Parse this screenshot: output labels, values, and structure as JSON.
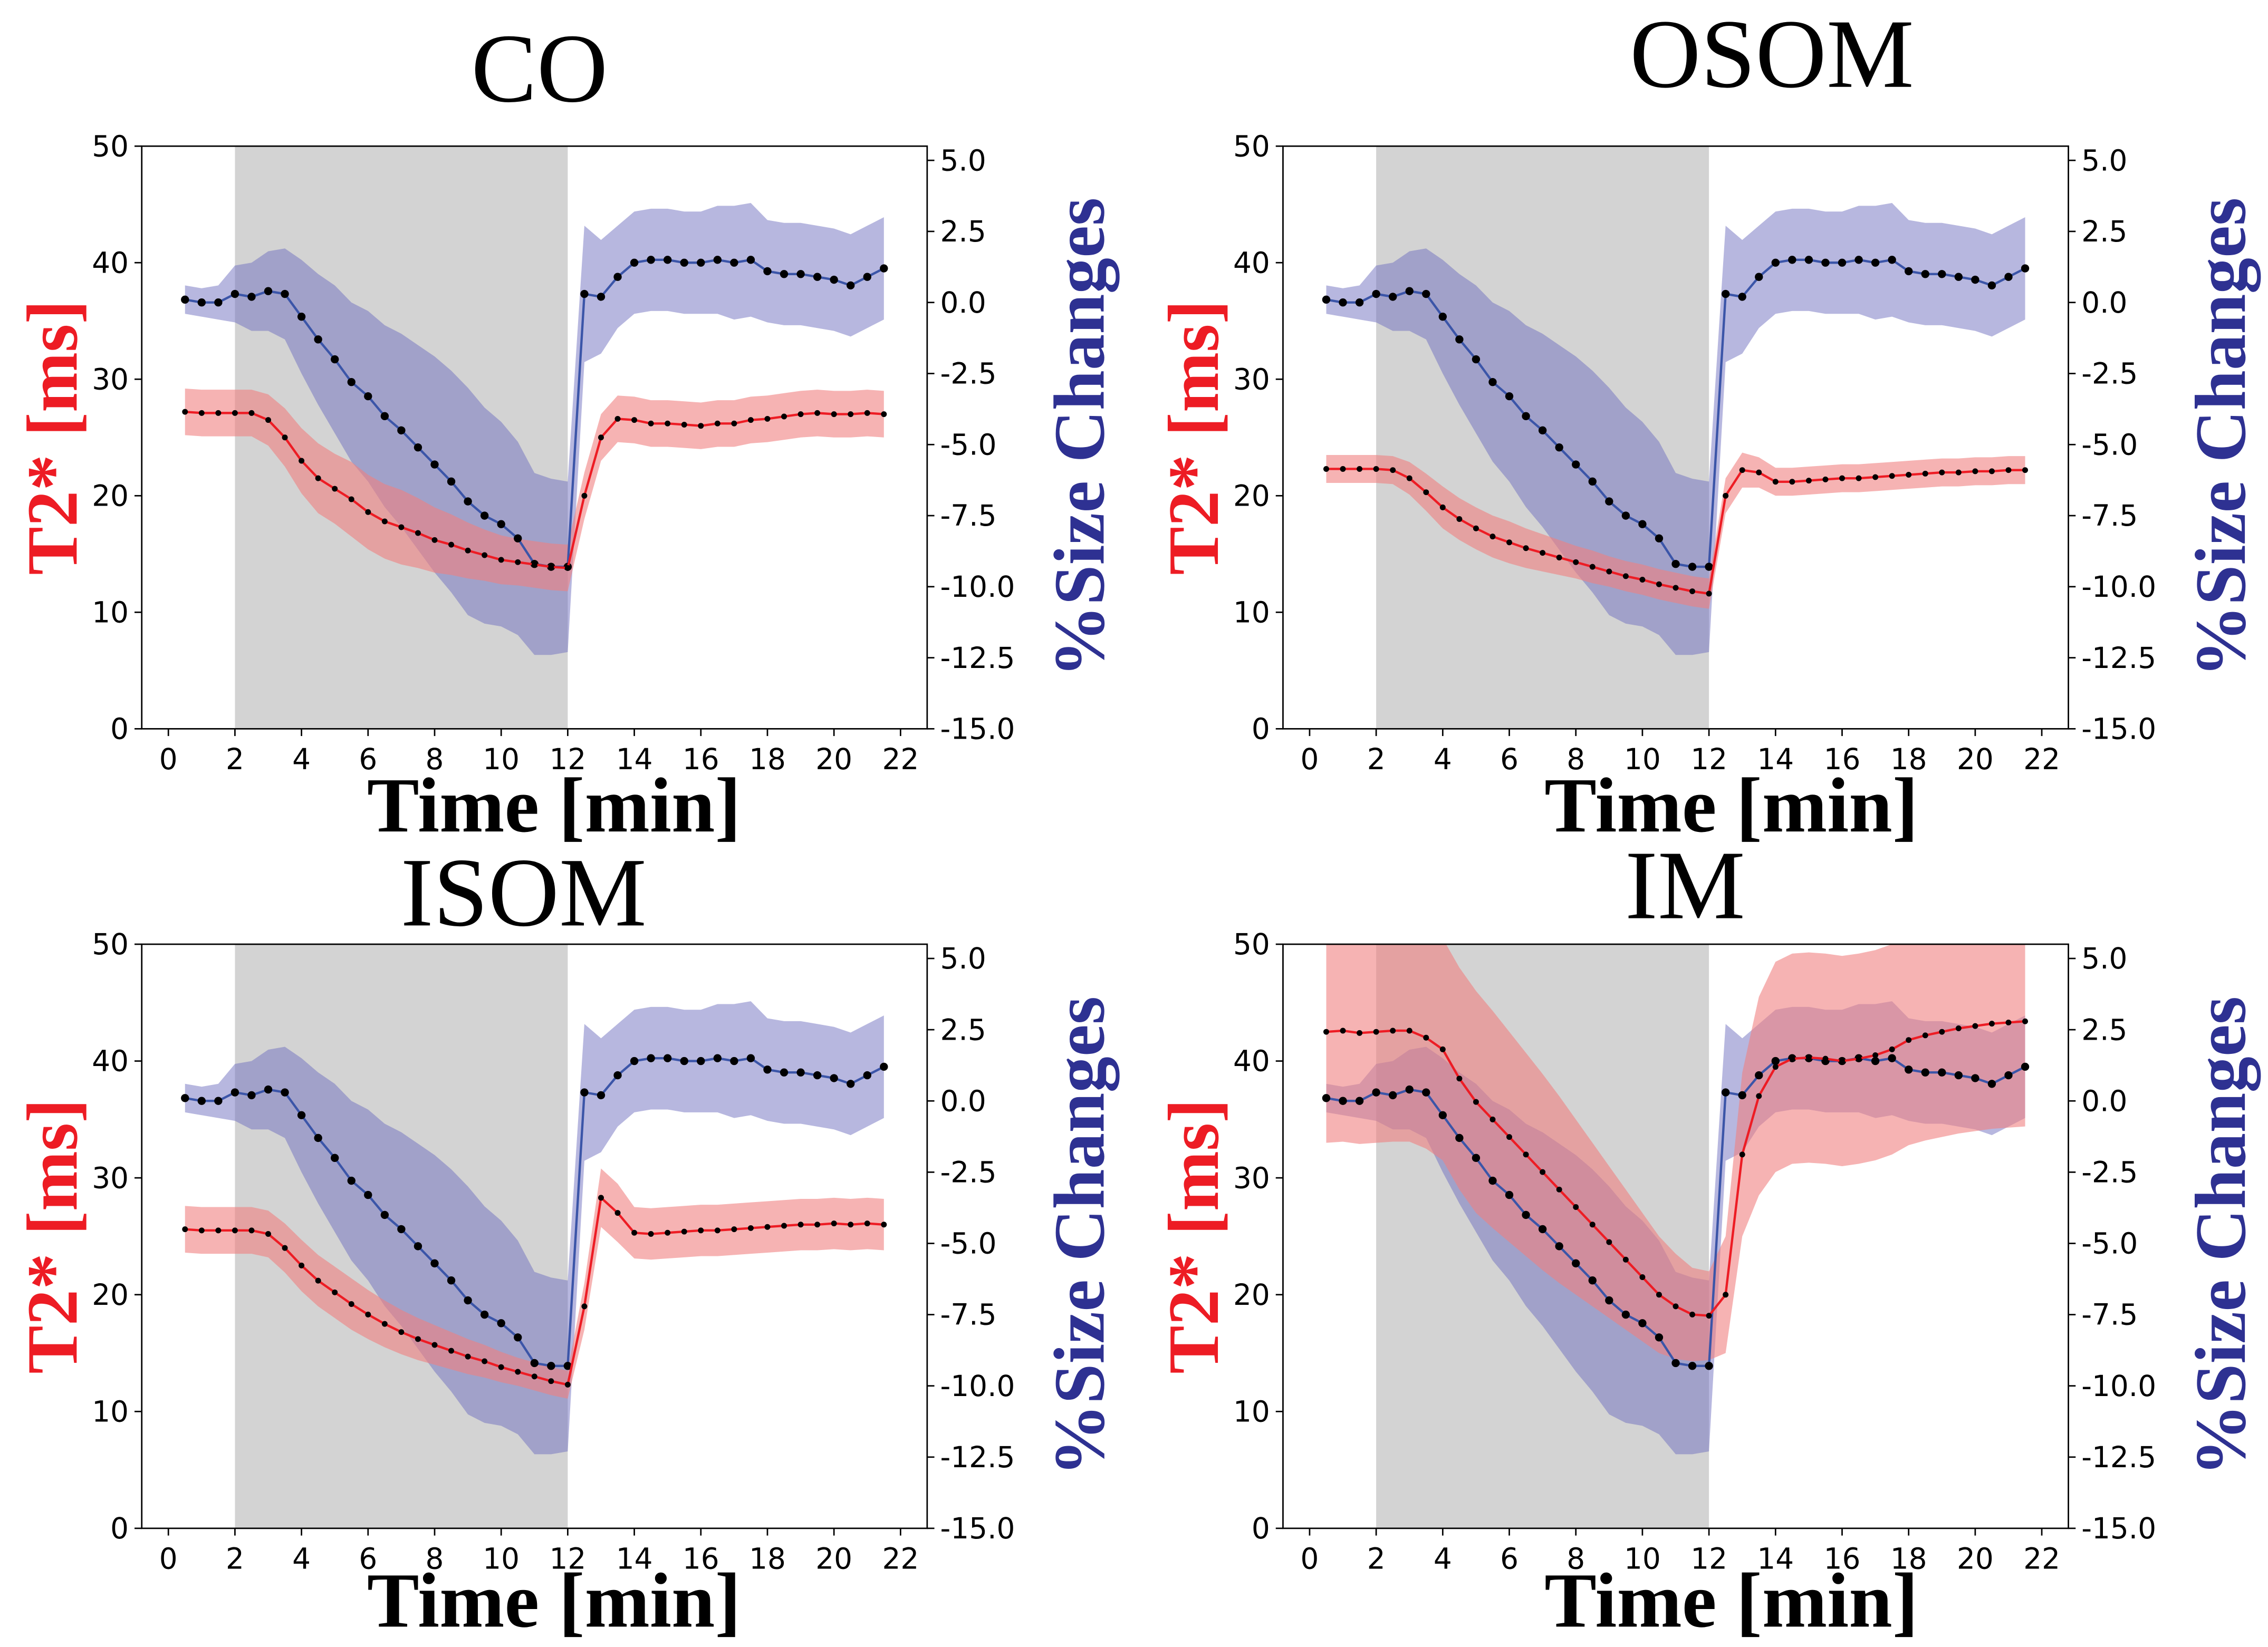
{
  "colors": {
    "t2": "#ed1c24",
    "t2_band": "#f08080",
    "size": "#2e3192",
    "size_line": "#3b55a8",
    "size_band": "#6f6fc0",
    "stim": "#d3d3d3",
    "dots": "#000000"
  },
  "chart_data": [
    {
      "type": "line",
      "title": "CO",
      "xlabel": "Time [min]",
      "ylabel_left": "T2* [ms]",
      "ylabel_right": "%Size Changes",
      "xlim": [
        -0.8,
        22.8
      ],
      "ylim_left": [
        0,
        50
      ],
      "ylim_right": [
        -15,
        5.5
      ],
      "xticks": [
        "0",
        "2",
        "4",
        "6",
        "8",
        "10",
        "12",
        "14",
        "16",
        "18",
        "20",
        "22"
      ],
      "yticks_left": [
        "0",
        "10",
        "20",
        "30",
        "40",
        "50"
      ],
      "yticks_right": [
        "-15.0",
        "-12.5",
        "-10.0",
        "-7.5",
        "-5.0",
        "-2.5",
        "0.0",
        "2.5",
        "5.0"
      ],
      "shaded_interval": [
        2,
        12
      ],
      "grid": false,
      "x": [
        0.5,
        1,
        1.5,
        2,
        2.5,
        3,
        3.5,
        4,
        4.5,
        5,
        5.5,
        6,
        6.5,
        7,
        7.5,
        8,
        8.5,
        9,
        9.5,
        10,
        10.5,
        11,
        11.5,
        12,
        12.5,
        13,
        13.5,
        14,
        14.5,
        15,
        15.5,
        16,
        16.5,
        17,
        17.5,
        18,
        18.5,
        19,
        19.5,
        20,
        20.5,
        21,
        21.5
      ],
      "series": [
        {
          "axis": "left",
          "mean": [
            27.2,
            27.1,
            27.1,
            27.1,
            27.1,
            26.5,
            25,
            23,
            21.5,
            20.6,
            19.7,
            18.6,
            17.8,
            17.3,
            16.8,
            16.2,
            15.8,
            15.3,
            14.9,
            14.5,
            14.3,
            14.1,
            13.9,
            13.8,
            20,
            25,
            26.6,
            26.5,
            26.2,
            26.2,
            26.1,
            26,
            26.2,
            26.2,
            26.5,
            26.6,
            26.8,
            27,
            27.1,
            27,
            27,
            27.1,
            27
          ],
          "band": [
            2,
            2,
            2,
            2,
            2,
            2.2,
            2.5,
            2.8,
            3,
            3,
            3.2,
            3.2,
            3.2,
            3.2,
            3,
            2.8,
            2.6,
            2.4,
            2.2,
            2.1,
            2,
            2,
            2,
            2,
            2,
            2,
            2,
            2,
            2,
            2,
            2,
            2,
            2,
            2,
            2,
            2,
            2,
            2,
            2,
            2,
            2,
            2,
            2
          ]
        },
        {
          "axis": "right",
          "mean": [
            0.1,
            0,
            0,
            0.3,
            0.2,
            0.4,
            0.3,
            -0.5,
            -1.3,
            -2,
            -2.8,
            -3.3,
            -4,
            -4.5,
            -5.1,
            -5.7,
            -6.3,
            -7,
            -7.5,
            -7.8,
            -8.3,
            -9.2,
            -9.3,
            -9.3,
            0.3,
            0.2,
            0.9,
            1.4,
            1.5,
            1.5,
            1.4,
            1.4,
            1.5,
            1.4,
            1.5,
            1.1,
            1,
            1,
            0.9,
            0.8,
            0.6,
            0.9,
            1.2
          ],
          "band": [
            0.5,
            0.5,
            0.6,
            1,
            1.2,
            1.4,
            1.6,
            2,
            2.3,
            2.6,
            2.8,
            3,
            3.2,
            3.4,
            3.6,
            3.8,
            3.9,
            4,
            3.8,
            3.6,
            3.4,
            3.2,
            3.1,
            3,
            2.4,
            2,
            1.8,
            1.8,
            1.8,
            1.8,
            1.8,
            1.8,
            1.9,
            2,
            2,
            1.8,
            1.8,
            1.8,
            1.8,
            1.8,
            1.8,
            1.8,
            1.8
          ]
        }
      ]
    },
    {
      "type": "line",
      "title": "OSOM",
      "xlabel": "Time [min]",
      "ylabel_left": "T2* [ms]",
      "ylabel_right": "%Size Changes",
      "xlim": [
        -0.8,
        22.8
      ],
      "ylim_left": [
        0,
        50
      ],
      "ylim_right": [
        -15,
        5.5
      ],
      "xticks": [
        "0",
        "2",
        "4",
        "6",
        "8",
        "10",
        "12",
        "14",
        "16",
        "18",
        "20",
        "22"
      ],
      "yticks_left": [
        "0",
        "10",
        "20",
        "30",
        "40",
        "50"
      ],
      "yticks_right": [
        "-15.0",
        "-12.5",
        "-10.0",
        "-7.5",
        "-5.0",
        "-2.5",
        "0.0",
        "2.5",
        "5.0"
      ],
      "shaded_interval": [
        2,
        12
      ],
      "grid": false,
      "x": [
        0.5,
        1,
        1.5,
        2,
        2.5,
        3,
        3.5,
        4,
        4.5,
        5,
        5.5,
        6,
        6.5,
        7,
        7.5,
        8,
        8.5,
        9,
        9.5,
        10,
        10.5,
        11,
        11.5,
        12,
        12.5,
        13,
        13.5,
        14,
        14.5,
        15,
        15.5,
        16,
        16.5,
        17,
        17.5,
        18,
        18.5,
        19,
        19.5,
        20,
        20.5,
        21,
        21.5
      ],
      "series": [
        {
          "axis": "left",
          "mean": [
            22.3,
            22.3,
            22.3,
            22.3,
            22.2,
            21.5,
            20.3,
            19,
            18,
            17.2,
            16.5,
            16,
            15.5,
            15.1,
            14.7,
            14.3,
            13.9,
            13.5,
            13.1,
            12.8,
            12.4,
            12.1,
            11.8,
            11.6,
            20,
            22.2,
            22,
            21.2,
            21.2,
            21.3,
            21.4,
            21.5,
            21.5,
            21.6,
            21.7,
            21.8,
            21.9,
            22,
            22,
            22.1,
            22.1,
            22.2,
            22.2
          ],
          "band": [
            1.2,
            1.2,
            1.2,
            1.2,
            1.2,
            1.4,
            1.6,
            1.8,
            1.8,
            1.8,
            1.8,
            1.8,
            1.7,
            1.6,
            1.5,
            1.4,
            1.4,
            1.3,
            1.3,
            1.3,
            1.3,
            1.3,
            1.3,
            1.3,
            1.5,
            1.5,
            1.3,
            1.2,
            1.2,
            1.2,
            1.2,
            1.2,
            1.2,
            1.2,
            1.2,
            1.2,
            1.2,
            1.2,
            1.2,
            1.2,
            1.2,
            1.2,
            1.2
          ]
        },
        {
          "axis": "right",
          "mean": [
            0.1,
            0,
            0,
            0.3,
            0.2,
            0.4,
            0.3,
            -0.5,
            -1.3,
            -2,
            -2.8,
            -3.3,
            -4,
            -4.5,
            -5.1,
            -5.7,
            -6.3,
            -7,
            -7.5,
            -7.8,
            -8.3,
            -9.2,
            -9.3,
            -9.3,
            0.3,
            0.2,
            0.9,
            1.4,
            1.5,
            1.5,
            1.4,
            1.4,
            1.5,
            1.4,
            1.5,
            1.1,
            1,
            1,
            0.9,
            0.8,
            0.6,
            0.9,
            1.2
          ],
          "band": [
            0.5,
            0.5,
            0.6,
            1,
            1.2,
            1.4,
            1.6,
            2,
            2.3,
            2.6,
            2.8,
            3,
            3.2,
            3.4,
            3.6,
            3.8,
            3.9,
            4,
            3.8,
            3.6,
            3.4,
            3.2,
            3.1,
            3,
            2.4,
            2,
            1.8,
            1.8,
            1.8,
            1.8,
            1.8,
            1.8,
            1.9,
            2,
            2,
            1.8,
            1.8,
            1.8,
            1.8,
            1.8,
            1.8,
            1.8,
            1.8
          ]
        }
      ]
    },
    {
      "type": "line",
      "title": "ISOM",
      "xlabel": "Time [min]",
      "ylabel_left": "T2* [ms]",
      "ylabel_right": "%Size Changes",
      "xlim": [
        -0.8,
        22.8
      ],
      "ylim_left": [
        0,
        50
      ],
      "ylim_right": [
        -15,
        5.5
      ],
      "xticks": [
        "0",
        "2",
        "4",
        "6",
        "8",
        "10",
        "12",
        "14",
        "16",
        "18",
        "20",
        "22"
      ],
      "yticks_left": [
        "0",
        "10",
        "20",
        "30",
        "40",
        "50"
      ],
      "yticks_right": [
        "-15.0",
        "-12.5",
        "-10.0",
        "-7.5",
        "-5.0",
        "-2.5",
        "0.0",
        "2.5",
        "5.0"
      ],
      "shaded_interval": [
        2,
        12
      ],
      "grid": false,
      "x": [
        0.5,
        1,
        1.5,
        2,
        2.5,
        3,
        3.5,
        4,
        4.5,
        5,
        5.5,
        6,
        6.5,
        7,
        7.5,
        8,
        8.5,
        9,
        9.5,
        10,
        10.5,
        11,
        11.5,
        12,
        12.5,
        13,
        13.5,
        14,
        14.5,
        15,
        15.5,
        16,
        16.5,
        17,
        17.5,
        18,
        18.5,
        19,
        19.5,
        20,
        20.5,
        21,
        21.5
      ],
      "series": [
        {
          "axis": "left",
          "mean": [
            25.6,
            25.5,
            25.5,
            25.5,
            25.5,
            25.2,
            24,
            22.5,
            21.2,
            20.2,
            19.2,
            18.3,
            17.5,
            16.8,
            16.2,
            15.7,
            15.2,
            14.7,
            14.3,
            13.8,
            13.4,
            13,
            12.6,
            12.3,
            19,
            28.3,
            27,
            25.3,
            25.2,
            25.3,
            25.4,
            25.5,
            25.5,
            25.6,
            25.7,
            25.8,
            25.9,
            26,
            26,
            26.1,
            26,
            26.1,
            26
          ],
          "band": [
            2,
            2,
            2,
            2,
            2,
            2,
            2.1,
            2.2,
            2.2,
            2.2,
            2.2,
            2.1,
            2,
            1.9,
            1.8,
            1.7,
            1.6,
            1.5,
            1.4,
            1.3,
            1.2,
            1.2,
            1.2,
            1.2,
            2,
            2.5,
            2.5,
            2.2,
            2.2,
            2.2,
            2.2,
            2.2,
            2.2,
            2.2,
            2.2,
            2.2,
            2.2,
            2.2,
            2.2,
            2.2,
            2.2,
            2.2,
            2.2
          ]
        },
        {
          "axis": "right",
          "mean": [
            0.1,
            0,
            0,
            0.3,
            0.2,
            0.4,
            0.3,
            -0.5,
            -1.3,
            -2,
            -2.8,
            -3.3,
            -4,
            -4.5,
            -5.1,
            -5.7,
            -6.3,
            -7,
            -7.5,
            -7.8,
            -8.3,
            -9.2,
            -9.3,
            -9.3,
            0.3,
            0.2,
            0.9,
            1.4,
            1.5,
            1.5,
            1.4,
            1.4,
            1.5,
            1.4,
            1.5,
            1.1,
            1,
            1,
            0.9,
            0.8,
            0.6,
            0.9,
            1.2
          ],
          "band": [
            0.5,
            0.5,
            0.6,
            1,
            1.2,
            1.4,
            1.6,
            2,
            2.3,
            2.6,
            2.8,
            3,
            3.2,
            3.4,
            3.6,
            3.8,
            3.9,
            4,
            3.8,
            3.6,
            3.4,
            3.2,
            3.1,
            3,
            2.4,
            2,
            1.8,
            1.8,
            1.8,
            1.8,
            1.8,
            1.8,
            1.9,
            2,
            2,
            1.8,
            1.8,
            1.8,
            1.8,
            1.8,
            1.8,
            1.8,
            1.8
          ]
        }
      ]
    },
    {
      "type": "line",
      "title": "IM",
      "xlabel": "Time [min]",
      "ylabel_left": "T2* [ms]",
      "ylabel_right": "%Size Changes",
      "xlim": [
        -0.8,
        22.8
      ],
      "ylim_left": [
        0,
        50
      ],
      "ylim_right": [
        -15,
        5.5
      ],
      "xticks": [
        "0",
        "2",
        "4",
        "6",
        "8",
        "10",
        "12",
        "14",
        "16",
        "18",
        "20",
        "22"
      ],
      "yticks_left": [
        "0",
        "10",
        "20",
        "30",
        "40",
        "50"
      ],
      "yticks_right": [
        "-15.0",
        "-12.5",
        "-10.0",
        "-7.5",
        "-5.0",
        "-2.5",
        "0.0",
        "2.5",
        "5.0"
      ],
      "shaded_interval": [
        2,
        12
      ],
      "grid": false,
      "x": [
        0.5,
        1,
        1.5,
        2,
        2.5,
        3,
        3.5,
        4,
        4.5,
        5,
        5.5,
        6,
        6.5,
        7,
        7.5,
        8,
        8.5,
        9,
        9.5,
        10,
        10.5,
        11,
        11.5,
        12,
        12.5,
        13,
        13.5,
        14,
        14.5,
        15,
        15.5,
        16,
        16.5,
        17,
        17.5,
        18,
        18.5,
        19,
        19.5,
        20,
        20.5,
        21,
        21.5
      ],
      "series": [
        {
          "axis": "left",
          "mean": [
            42.5,
            42.6,
            42.4,
            42.5,
            42.6,
            42.6,
            42,
            41,
            38.5,
            36.5,
            35,
            33.5,
            32,
            30.5,
            29,
            27.5,
            26,
            24.5,
            23,
            21.5,
            20,
            19,
            18.3,
            18.2,
            20,
            32,
            37,
            39.5,
            40.2,
            40.3,
            40.2,
            40,
            40.2,
            40.5,
            41,
            41.8,
            42.2,
            42.5,
            42.8,
            43,
            43.2,
            43.3,
            43.4
          ],
          "band": [
            9.5,
            9.5,
            9.5,
            9.5,
            9.5,
            9.5,
            9.5,
            9.5,
            9.5,
            9.5,
            9.3,
            9,
            8.7,
            8.4,
            8,
            7.5,
            7,
            6.5,
            6,
            5.5,
            5,
            4.5,
            4,
            3.8,
            5,
            7,
            8.5,
            9,
            9,
            9,
            9,
            9,
            9,
            9,
            9,
            9,
            9,
            9,
            9,
            9,
            9,
            9,
            9
          ]
        },
        {
          "axis": "right",
          "mean": [
            0.1,
            0,
            0,
            0.3,
            0.2,
            0.4,
            0.3,
            -0.5,
            -1.3,
            -2,
            -2.8,
            -3.3,
            -4,
            -4.5,
            -5.1,
            -5.7,
            -6.3,
            -7,
            -7.5,
            -7.8,
            -8.3,
            -9.2,
            -9.3,
            -9.3,
            0.3,
            0.2,
            0.9,
            1.4,
            1.5,
            1.5,
            1.4,
            1.4,
            1.5,
            1.4,
            1.5,
            1.1,
            1,
            1,
            0.9,
            0.8,
            0.6,
            0.9,
            1.2
          ],
          "band": [
            0.5,
            0.5,
            0.6,
            1,
            1.2,
            1.4,
            1.6,
            2,
            2.3,
            2.6,
            2.8,
            3,
            3.2,
            3.4,
            3.6,
            3.8,
            3.9,
            4,
            3.8,
            3.6,
            3.4,
            3.2,
            3.1,
            3,
            2.4,
            2,
            1.8,
            1.8,
            1.8,
            1.8,
            1.8,
            1.8,
            1.9,
            2,
            2,
            1.8,
            1.8,
            1.8,
            1.8,
            1.8,
            1.8,
            1.8,
            1.8
          ]
        }
      ]
    }
  ]
}
